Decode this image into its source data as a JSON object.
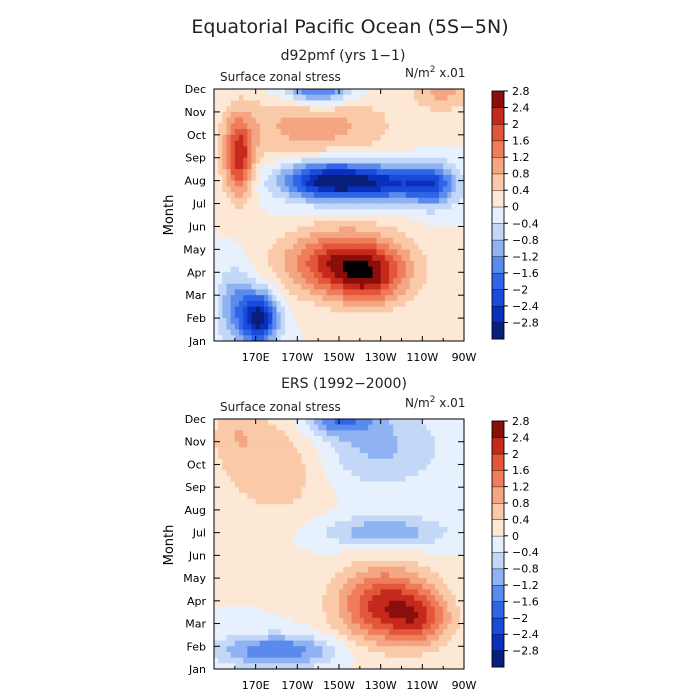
{
  "figure_title": "Equatorial Pacific Ocean (5S−5N)",
  "chart_data": [
    {
      "type": "heatmap",
      "title": "d92pmf (yrs 1−1)",
      "field_label": "Surface zonal stress",
      "units_base": "N/m",
      "units_exp": "2",
      "units_scale": " x.01",
      "ylabel": "Month",
      "xlabel": "",
      "x_tick_labels": [
        "170E",
        "170W",
        "150W",
        "130W",
        "110W",
        "90W"
      ],
      "x_tick_values": [
        170,
        190,
        210,
        230,
        250,
        270
      ],
      "xlim": [
        150,
        270
      ],
      "y_tick_labels": [
        "Jan",
        "Feb",
        "Mar",
        "Apr",
        "May",
        "Jun",
        "Jul",
        "Aug",
        "Sep",
        "Oct",
        "Nov",
        "Dec"
      ],
      "ylim": [
        0,
        11
      ],
      "levels": [
        -2.8,
        -2.4,
        -2,
        -1.6,
        -1.2,
        -0.8,
        -0.4,
        0,
        0.4,
        0.8,
        1.2,
        1.6,
        2,
        2.4,
        2.8
      ],
      "features": [
        {
          "lon": 172,
          "month": 1.0,
          "amp": -3.0,
          "s_lon": 6,
          "s_month": 0.8
        },
        {
          "lon": 160,
          "month": 1.5,
          "amp": -1.2,
          "s_lon": 6,
          "s_month": 1.2
        },
        {
          "lon": 205,
          "month": 7.0,
          "amp": -3.0,
          "s_lon": 16,
          "s_month": 0.6
        },
        {
          "lon": 235,
          "month": 6.9,
          "amp": -2.0,
          "s_lon": 16,
          "s_month": 0.55
        },
        {
          "lon": 255,
          "month": 6.8,
          "amp": -1.5,
          "s_lon": 8,
          "s_month": 0.7
        },
        {
          "lon": 200,
          "month": 11.0,
          "amp": -2.0,
          "s_lon": 12,
          "s_month": 0.5
        },
        {
          "lon": 213,
          "month": 3.4,
          "amp": 2.4,
          "s_lon": 20,
          "s_month": 1.0
        },
        {
          "lon": 225,
          "month": 2.6,
          "amp": 1.2,
          "s_lon": 12,
          "s_month": 0.8
        },
        {
          "lon": 162,
          "month": 8.0,
          "amp": 2.2,
          "s_lon": 5,
          "s_month": 1.2
        },
        {
          "lon": 198,
          "month": 9.4,
          "amp": 1.0,
          "s_lon": 26,
          "s_month": 1.1
        },
        {
          "lon": 260,
          "month": 10.9,
          "amp": 0.9,
          "s_lon": 10,
          "s_month": 0.6
        }
      ]
    },
    {
      "type": "heatmap",
      "title": "ERS (1992−2000)",
      "field_label": "Surface zonal stress",
      "units_base": "N/m",
      "units_exp": "2",
      "units_scale": " x.01",
      "ylabel": "Month",
      "xlabel": "",
      "x_tick_labels": [
        "170E",
        "170W",
        "150W",
        "130W",
        "110W",
        "90W"
      ],
      "x_tick_values": [
        170,
        190,
        210,
        230,
        250,
        270
      ],
      "xlim": [
        150,
        270
      ],
      "y_tick_labels": [
        "Jan",
        "Feb",
        "Mar",
        "Apr",
        "May",
        "Jun",
        "Jul",
        "Aug",
        "Sep",
        "Oct",
        "Nov",
        "Dec"
      ],
      "ylim": [
        0,
        11
      ],
      "levels": [
        -2.8,
        -2.4,
        -2,
        -1.6,
        -1.2,
        -0.8,
        -0.4,
        0,
        0.4,
        0.8,
        1.2,
        1.6,
        2,
        2.4,
        2.8
      ],
      "features": [
        {
          "lon": 180,
          "month": 0.8,
          "amp": -1.6,
          "s_lon": 20,
          "s_month": 0.5
        },
        {
          "lon": 232,
          "month": 6.0,
          "amp": -1.2,
          "s_lon": 20,
          "s_month": 0.5
        },
        {
          "lon": 228,
          "month": 9.8,
          "amp": -0.9,
          "s_lon": 22,
          "s_month": 1.3
        },
        {
          "lon": 210,
          "month": 11.0,
          "amp": -1.4,
          "s_lon": 12,
          "s_month": 0.5
        },
        {
          "lon": 232,
          "month": 2.8,
          "amp": 2.2,
          "s_lon": 16,
          "s_month": 1.2
        },
        {
          "lon": 250,
          "month": 2.2,
          "amp": 1.2,
          "s_lon": 10,
          "s_month": 0.8
        },
        {
          "lon": 180,
          "month": 9.0,
          "amp": 0.8,
          "s_lon": 18,
          "s_month": 1.6
        },
        {
          "lon": 160,
          "month": 10.5,
          "amp": 0.5,
          "s_lon": 8,
          "s_month": 1.0
        }
      ]
    }
  ]
}
